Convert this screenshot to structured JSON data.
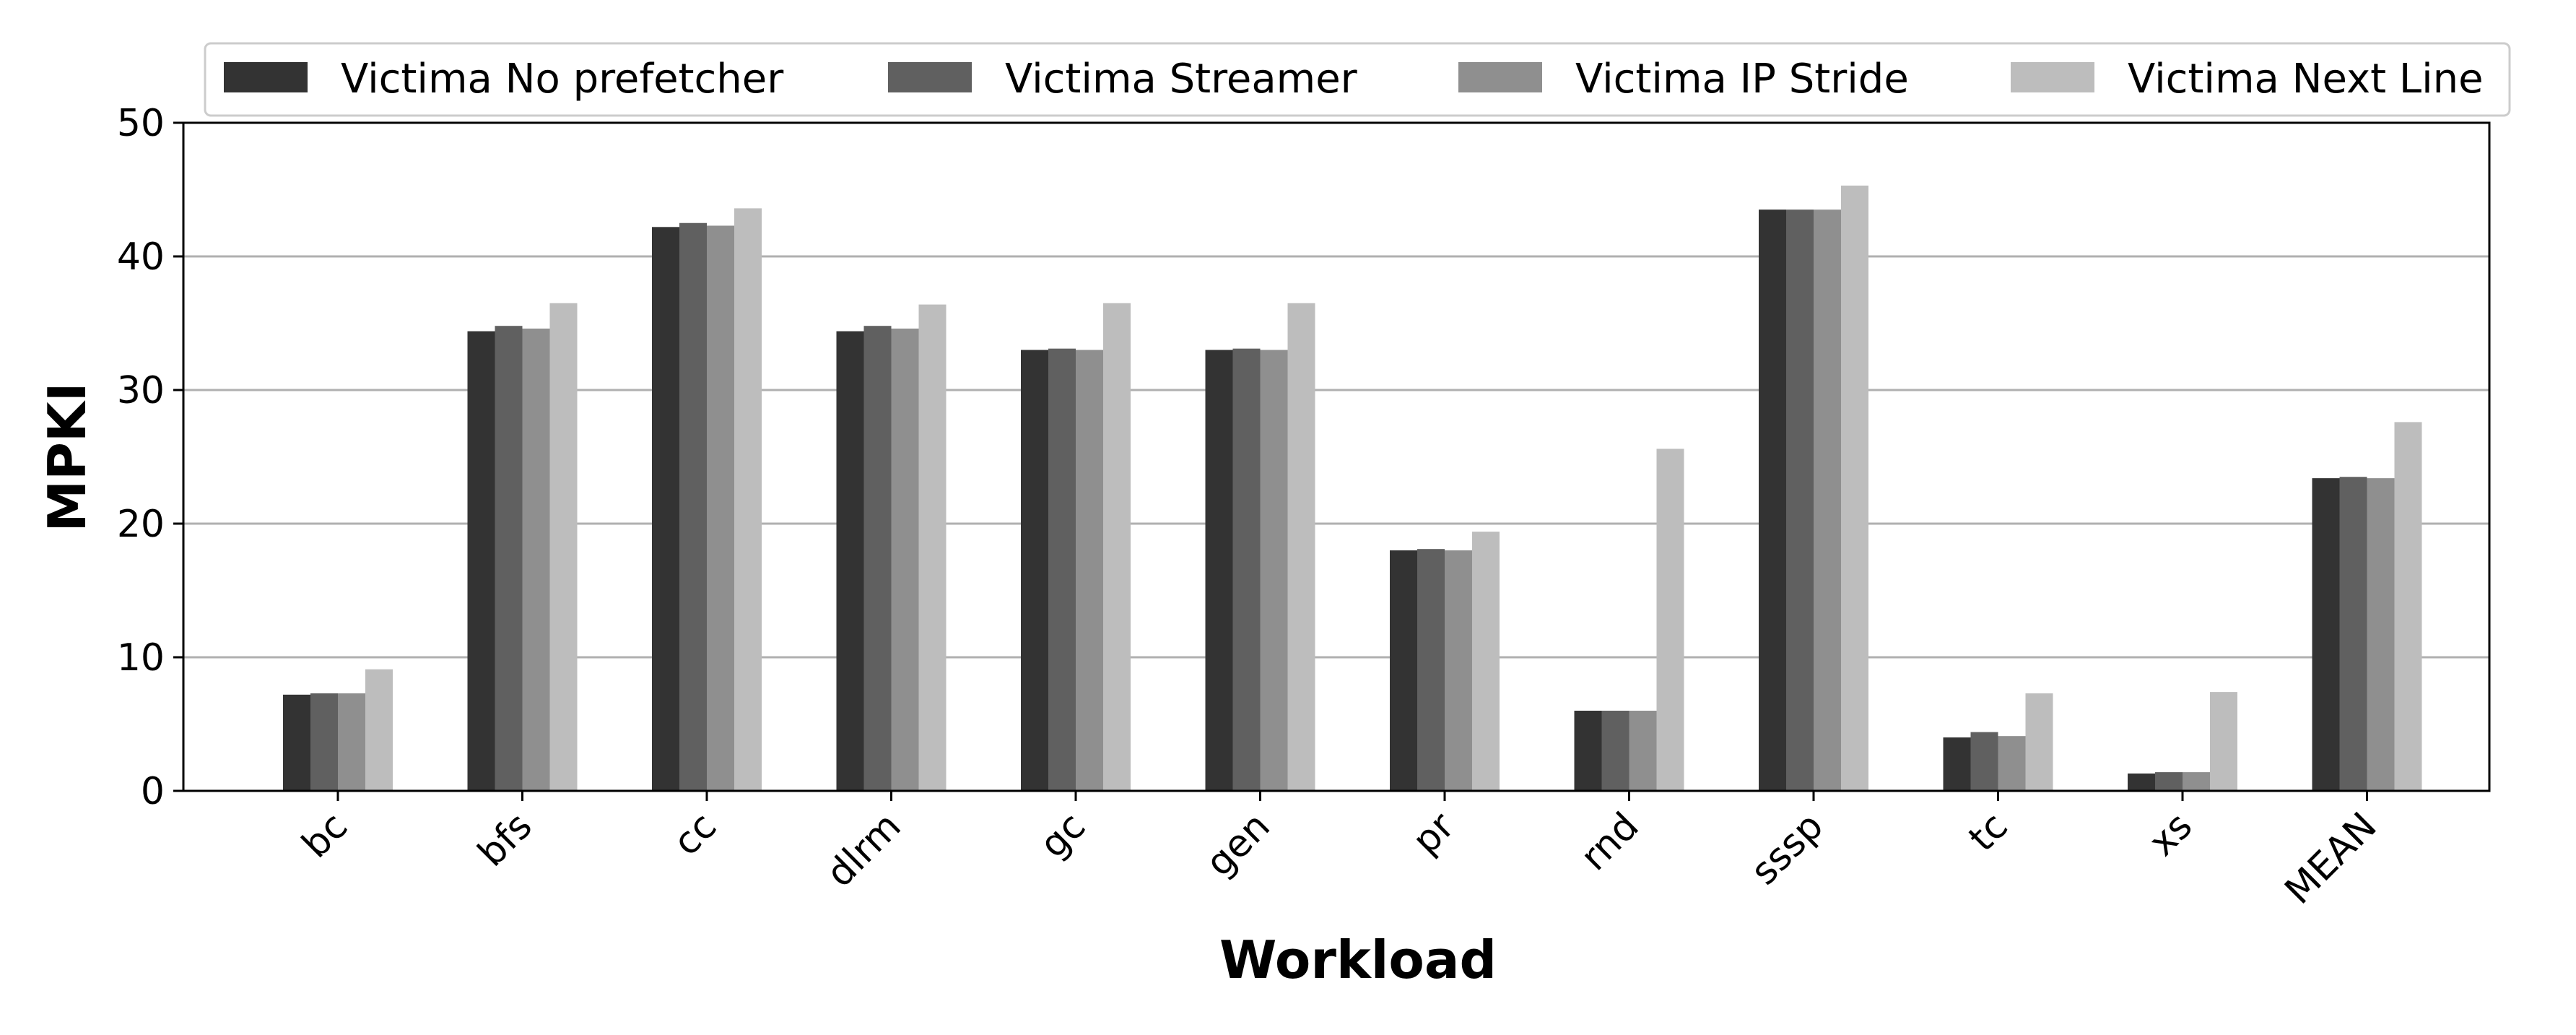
{
  "chart_data": {
    "type": "bar",
    "title": "",
    "xlabel": "Workload",
    "ylabel": "MPKI",
    "ylim": [
      0,
      50
    ],
    "yticks": [
      0,
      10,
      20,
      30,
      40,
      50
    ],
    "grid": "horizontal",
    "legend_position": "top",
    "categories": [
      "bc",
      "bfs",
      "cc",
      "dlrm",
      "gc",
      "gen",
      "pr",
      "rnd",
      "sssp",
      "tc",
      "xs",
      "MEAN"
    ],
    "series": [
      {
        "name": "Victima No prefetcher",
        "color": "#333333",
        "values": [
          7.2,
          34.4,
          42.2,
          34.4,
          33.0,
          33.0,
          18.0,
          6.0,
          43.5,
          4.0,
          1.3,
          23.4
        ]
      },
      {
        "name": "Victima Streamer",
        "color": "#606060",
        "values": [
          7.3,
          34.8,
          42.5,
          34.8,
          33.1,
          33.1,
          18.1,
          6.0,
          43.5,
          4.4,
          1.4,
          23.5
        ]
      },
      {
        "name": "Victima IP Stride",
        "color": "#8f8f8f",
        "values": [
          7.3,
          34.6,
          42.3,
          34.6,
          33.0,
          33.0,
          18.0,
          6.0,
          43.5,
          4.1,
          1.4,
          23.4
        ]
      },
      {
        "name": "Victima Next Line",
        "color": "#bdbdbd",
        "values": [
          9.1,
          36.5,
          43.6,
          36.4,
          36.5,
          36.5,
          19.4,
          25.6,
          45.3,
          7.3,
          7.4,
          27.6
        ]
      }
    ]
  }
}
